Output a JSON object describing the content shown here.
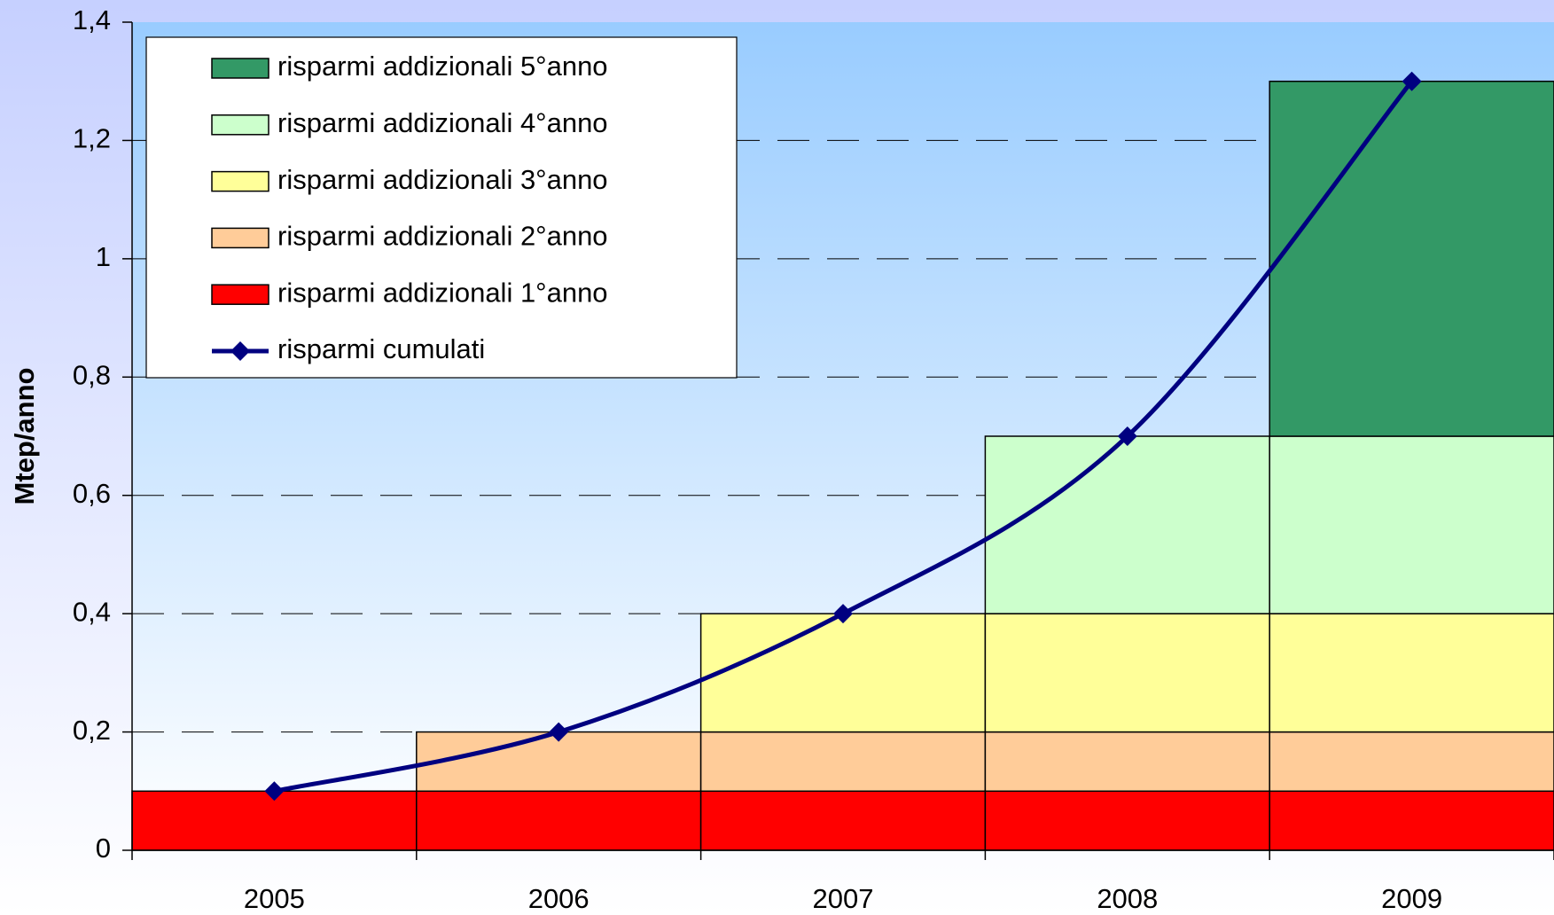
{
  "chart_data": {
    "type": "bar",
    "stacked": true,
    "y_label": "Mtep/anno",
    "categories": [
      "2005",
      "2006",
      "2007",
      "2008",
      "2009"
    ],
    "series": [
      {
        "name": "risparmi addizionali 1°anno",
        "color": "#ff0000",
        "values": [
          0.1,
          0.1,
          0.1,
          0.1,
          0.1
        ]
      },
      {
        "name": "risparmi addizionali 2°anno",
        "color": "#ffcc99",
        "values": [
          null,
          0.1,
          0.1,
          0.1,
          0.1
        ]
      },
      {
        "name": "risparmi addizionali 3°anno",
        "color": "#ffff99",
        "values": [
          null,
          null,
          0.2,
          0.2,
          0.2
        ]
      },
      {
        "name": "risparmi addizionali 4°anno",
        "color": "#ccffcc",
        "values": [
          null,
          null,
          null,
          0.3,
          0.3
        ]
      },
      {
        "name": "risparmi addizionali 5°anno",
        "color": "#339966",
        "values": [
          null,
          null,
          null,
          null,
          0.6
        ]
      },
      {
        "name": "risparmi cumulati",
        "type": "line",
        "color": "#000080",
        "values": [
          0.1,
          0.2,
          0.4,
          0.7,
          1.3
        ]
      }
    ],
    "ylim": [
      0,
      1.4
    ],
    "yticks": [
      0,
      {
        "value": 0.2,
        "label": "0,2"
      },
      {
        "value": 0.4,
        "label": "0,4"
      },
      {
        "value": 0.6,
        "label": "0,6"
      },
      {
        "value": 0.8,
        "label": "0,8"
      },
      1,
      {
        "value": 1.2,
        "label": "1,2"
      },
      {
        "value": 1.4,
        "label": "1,4"
      }
    ],
    "grid": true,
    "legend": "top-left"
  }
}
